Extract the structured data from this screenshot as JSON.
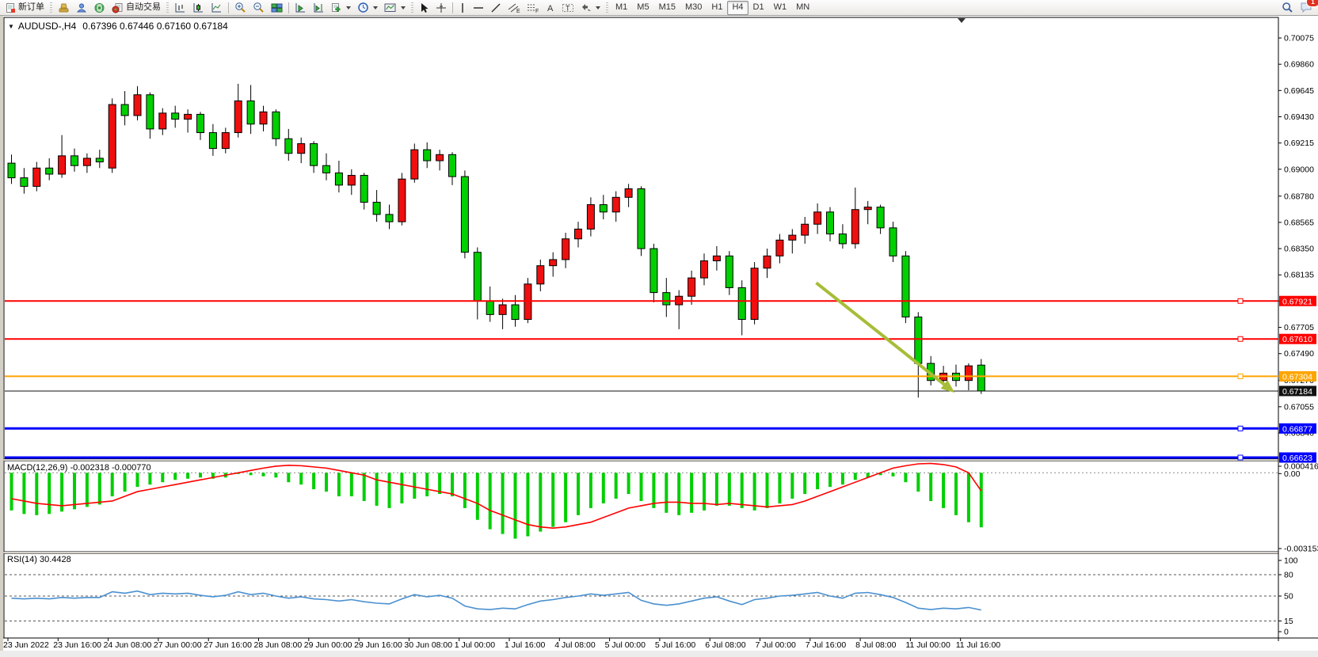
{
  "toolbar": {
    "new_order_label": "新订单",
    "autotrade_label": "自动交易",
    "timeframes": [
      "M1",
      "M5",
      "M15",
      "M30",
      "H1",
      "H4",
      "D1",
      "W1",
      "MN"
    ],
    "active_timeframe": "H4",
    "notification_count": "1",
    "icons": {
      "new-order-icon": "document-plus",
      "stamp-icon": "stamp",
      "accounts-icon": "user",
      "signal-icon": "broadcast",
      "autotrade-icon": "autotrade-toggle",
      "bar-chart-icon": "ohlc-bars",
      "candle-chart-icon": "candlesticks",
      "line-chart-icon": "line-chart",
      "zoom-in-icon": "magnifier-plus",
      "zoom-out-icon": "magnifier-minus",
      "tile-windows-icon": "tiled-windows",
      "auto-scroll-icon": "scroll-to-end",
      "chart-shift-icon": "chart-shift",
      "new-chart-icon": "add-chart",
      "period-icon": "clock",
      "template-icon": "chart-template",
      "cursor-icon": "pointer",
      "crosshair-icon": "crosshair",
      "vertical-line-icon": "vertical-line",
      "horizontal-line-icon": "horizontal-line",
      "trendline-icon": "trendline",
      "channel-icon": "equidistant-channel-E",
      "fibonacci-icon": "fibonacci-F",
      "text-icon": "letter-A",
      "label-icon": "text-label-T",
      "arrows-icon": "arrow-objects",
      "search-icon": "magnifier",
      "chat-icon": "speech-bubble"
    }
  },
  "chart": {
    "symbol_period": "AUDUSD-,H4",
    "ohlc_line": "0.67396 0.67446 0.67160 0.67184"
  },
  "chart_data": [
    {
      "type": "candlestick",
      "symbol": "AUDUSD-",
      "timeframe": "H4",
      "open": "0.67396",
      "high": "0.67446",
      "low": "0.67160",
      "close": "0.67184",
      "bull_color": "#ef0f0f",
      "bear_color": "#00cf00",
      "y_ticks": [
        "0.70075",
        "0.69860",
        "0.69645",
        "0.69430",
        "0.69215",
        "0.69000",
        "0.68780",
        "0.68565",
        "0.68350",
        "0.68135",
        "0.67920",
        "0.67705",
        "0.67490",
        "0.67270",
        "0.67055",
        "0.66840"
      ],
      "x_labels": [
        "23 Jun 2022",
        "23 Jun 16:00",
        "24 Jun 08:00",
        "27 Jun 00:00",
        "27 Jun 16:00",
        "28 Jun 08:00",
        "29 Jun 00:00",
        "29 Jun 16:00",
        "30 Jun 08:00",
        "1 Jul 00:00",
        "1 Jul 16:00",
        "4 Jul 08:00",
        "5 Jul 00:00",
        "5 Jul 16:00",
        "6 Jul 08:00",
        "7 Jul 00:00",
        "7 Jul 16:00",
        "8 Jul 08:00",
        "11 Jul 00:00",
        "11 Jul 16:00"
      ],
      "candles_per_label": 4,
      "hlines": [
        {
          "price": 0.67921,
          "label": "0.67921",
          "color": "#ff0000",
          "width": 2,
          "handle": true
        },
        {
          "price": 0.6761,
          "label": "0.67610",
          "color": "#ff0000",
          "width": 2,
          "handle": true
        },
        {
          "price": 0.67304,
          "label": "0.67304",
          "color": "#ffa500",
          "width": 2,
          "handle": true
        },
        {
          "price": 0.67184,
          "label": "0.67184",
          "color": "#111111",
          "width": 1,
          "handle": false,
          "role": "current-price"
        },
        {
          "price": 0.66877,
          "label": "0.66877",
          "color": "#0000ff",
          "width": 3,
          "handle": true
        },
        {
          "price": 0.66623,
          "label": "0.66623",
          "color": "#0000ff",
          "width": 3,
          "handle": true
        }
      ],
      "arrow": {
        "from_index": 63.9,
        "from_price": 0.6807,
        "to_index": 74.4,
        "to_price": 0.6721,
        "color": "#a6bd38"
      },
      "candles": [
        [
          0.6905,
          0.6912,
          0.6888,
          0.6893
        ],
        [
          0.6893,
          0.6901,
          0.688,
          0.6886
        ],
        [
          0.6886,
          0.6906,
          0.6882,
          0.6901
        ],
        [
          0.6901,
          0.6909,
          0.6891,
          0.6896
        ],
        [
          0.6896,
          0.6928,
          0.6893,
          0.6911
        ],
        [
          0.6911,
          0.6917,
          0.6898,
          0.6903
        ],
        [
          0.6903,
          0.6913,
          0.6897,
          0.6909
        ],
        [
          0.6909,
          0.6916,
          0.6901,
          0.6906
        ],
        [
          0.6901,
          0.6958,
          0.6897,
          0.6953
        ],
        [
          0.6953,
          0.6964,
          0.6936,
          0.6944
        ],
        [
          0.6944,
          0.6968,
          0.694,
          0.6961
        ],
        [
          0.6961,
          0.6963,
          0.6925,
          0.6933
        ],
        [
          0.6933,
          0.695,
          0.6928,
          0.6946
        ],
        [
          0.6946,
          0.6952,
          0.6934,
          0.6941
        ],
        [
          0.6941,
          0.6949,
          0.693,
          0.6945
        ],
        [
          0.6945,
          0.6947,
          0.6924,
          0.693
        ],
        [
          0.693,
          0.6937,
          0.6911,
          0.6917
        ],
        [
          0.6917,
          0.6934,
          0.6913,
          0.693
        ],
        [
          0.693,
          0.697,
          0.6926,
          0.6956
        ],
        [
          0.6956,
          0.6969,
          0.6929,
          0.6937
        ],
        [
          0.6937,
          0.6952,
          0.6931,
          0.6947
        ],
        [
          0.6947,
          0.6949,
          0.6919,
          0.6925
        ],
        [
          0.6925,
          0.6933,
          0.6907,
          0.6913
        ],
        [
          0.6913,
          0.6926,
          0.6905,
          0.6921
        ],
        [
          0.6921,
          0.6923,
          0.6897,
          0.6903
        ],
        [
          0.6903,
          0.6913,
          0.6891,
          0.6897
        ],
        [
          0.6897,
          0.6907,
          0.6881,
          0.6887
        ],
        [
          0.6887,
          0.69,
          0.6879,
          0.6895
        ],
        [
          0.6895,
          0.6897,
          0.6867,
          0.6873
        ],
        [
          0.6873,
          0.6883,
          0.6857,
          0.6863
        ],
        [
          0.6863,
          0.6871,
          0.6851,
          0.6857
        ],
        [
          0.6857,
          0.6897,
          0.6854,
          0.6892
        ],
        [
          0.6892,
          0.6921,
          0.6889,
          0.6916
        ],
        [
          0.6916,
          0.6922,
          0.6901,
          0.6907
        ],
        [
          0.6907,
          0.6916,
          0.6899,
          0.6912
        ],
        [
          0.6912,
          0.6914,
          0.6887,
          0.6894
        ],
        [
          0.6894,
          0.6899,
          0.6827,
          0.6832
        ],
        [
          0.6832,
          0.6836,
          0.6777,
          0.6792
        ],
        [
          0.6792,
          0.6804,
          0.6775,
          0.6781
        ],
        [
          0.6781,
          0.6794,
          0.6769,
          0.6789
        ],
        [
          0.6789,
          0.6797,
          0.6771,
          0.6777
        ],
        [
          0.6777,
          0.6811,
          0.6774,
          0.6806
        ],
        [
          0.6806,
          0.6826,
          0.68,
          0.6821
        ],
        [
          0.6821,
          0.6832,
          0.6812,
          0.6826
        ],
        [
          0.6826,
          0.6848,
          0.6819,
          0.6843
        ],
        [
          0.6843,
          0.6857,
          0.6836,
          0.6851
        ],
        [
          0.6851,
          0.6877,
          0.6845,
          0.6871
        ],
        [
          0.6871,
          0.6879,
          0.6859,
          0.6865
        ],
        [
          0.6865,
          0.6882,
          0.6857,
          0.6877
        ],
        [
          0.6877,
          0.6888,
          0.6869,
          0.6884
        ],
        [
          0.6884,
          0.6886,
          0.6829,
          0.6835
        ],
        [
          0.6835,
          0.6839,
          0.6791,
          0.6799
        ],
        [
          0.6799,
          0.6811,
          0.6779,
          0.6789
        ],
        [
          0.6789,
          0.6801,
          0.6769,
          0.6796
        ],
        [
          0.6796,
          0.6817,
          0.6789,
          0.6811
        ],
        [
          0.6811,
          0.6831,
          0.6805,
          0.6825
        ],
        [
          0.6825,
          0.6837,
          0.6817,
          0.6829
        ],
        [
          0.6829,
          0.6833,
          0.6797,
          0.6803
        ],
        [
          0.6803,
          0.6809,
          0.6764,
          0.6777
        ],
        [
          0.6777,
          0.6824,
          0.6773,
          0.6819
        ],
        [
          0.6819,
          0.6835,
          0.6811,
          0.6829
        ],
        [
          0.6829,
          0.6847,
          0.6823,
          0.6842
        ],
        [
          0.6842,
          0.6851,
          0.6831,
          0.6846
        ],
        [
          0.6846,
          0.6861,
          0.6839,
          0.6855
        ],
        [
          0.6855,
          0.6872,
          0.6847,
          0.6865
        ],
        [
          0.6865,
          0.6869,
          0.6841,
          0.6847
        ],
        [
          0.6847,
          0.6855,
          0.6835,
          0.6839
        ],
        [
          0.6839,
          0.6885,
          0.6835,
          0.6867
        ],
        [
          0.6867,
          0.6874,
          0.6855,
          0.6869
        ],
        [
          0.6869,
          0.6871,
          0.6847,
          0.6852
        ],
        [
          0.6852,
          0.6857,
          0.6824,
          0.6829
        ],
        [
          0.6829,
          0.6833,
          0.6774,
          0.6779
        ],
        [
          0.6779,
          0.6783,
          0.6713,
          0.6741
        ],
        [
          0.6741,
          0.6747,
          0.6723,
          0.6727
        ],
        [
          0.6727,
          0.6739,
          0.6721,
          0.6733
        ],
        [
          0.6733,
          0.674,
          0.6722,
          0.6727
        ],
        [
          0.6727,
          0.6741,
          0.6719,
          0.6739
        ],
        [
          0.67396,
          0.67446,
          0.6716,
          0.67184
        ]
      ]
    },
    {
      "type": "bar+line",
      "name": "MACD",
      "params": "(12,26,9)",
      "label_display": "MACD(12,26,9) -0.002318 -0.000770",
      "main_value": "-0.002318",
      "signal_value": "-0.000770",
      "histogram_color": "#00cf00",
      "signal_color": "#ff0000",
      "y_axis": {
        "max_label": "0.000416",
        "zero_label": "0.00",
        "min_label": "-0.003153",
        "min_value": -0.003153
      },
      "histogram": [
        -0.0016,
        -0.00175,
        -0.0018,
        -0.00175,
        -0.00165,
        -0.00155,
        -0.00145,
        -0.00135,
        -0.001,
        -0.0008,
        -0.0006,
        -0.0005,
        -0.0004,
        -0.0003,
        -0.00025,
        -0.0002,
        -0.00025,
        -0.0002,
        -5e-05,
        -0.0001,
        -0.00015,
        -0.0002,
        -0.0004,
        -0.0005,
        -0.0007,
        -0.0008,
        -0.001,
        -0.001,
        -0.0012,
        -0.0014,
        -0.0015,
        -0.0013,
        -0.0011,
        -0.001,
        -0.0009,
        -0.001,
        -0.0015,
        -0.002,
        -0.0024,
        -0.0026,
        -0.0028,
        -0.0027,
        -0.0025,
        -0.0023,
        -0.0021,
        -0.0018,
        -0.0015,
        -0.0013,
        -0.0011,
        -0.0009,
        -0.0012,
        -0.0015,
        -0.0017,
        -0.0018,
        -0.0017,
        -0.0016,
        -0.0014,
        -0.0014,
        -0.0015,
        -0.0016,
        -0.0015,
        -0.0013,
        -0.0011,
        -0.0009,
        -0.0007,
        -0.0006,
        -0.0005,
        -0.0003,
        -0.0002,
        -0.0001,
        -0.00015,
        -0.0004,
        -0.0008,
        -0.0012,
        -0.0015,
        -0.0018,
        -0.0021,
        -0.002318
      ],
      "signal": [
        -0.0011,
        -0.0012,
        -0.0013,
        -0.00135,
        -0.0014,
        -0.00135,
        -0.0013,
        -0.00125,
        -0.0012,
        -0.001,
        -0.0008,
        -0.0007,
        -0.0006,
        -0.0005,
        -0.0004,
        -0.0003,
        -0.0002,
        -0.0001,
        0.0,
        0.0001,
        0.0002,
        0.00028,
        0.00032,
        0.0003,
        0.00025,
        0.0002,
        0.0001,
        0.0,
        -0.0001,
        -0.0003,
        -0.0004,
        -0.0005,
        -0.0006,
        -0.0007,
        -0.0008,
        -0.0009,
        -0.0011,
        -0.0013,
        -0.0016,
        -0.0018,
        -0.002,
        -0.0022,
        -0.0023,
        -0.00235,
        -0.0023,
        -0.0022,
        -0.0021,
        -0.0019,
        -0.0017,
        -0.0015,
        -0.0014,
        -0.0013,
        -0.00125,
        -0.00125,
        -0.0013,
        -0.0013,
        -0.00135,
        -0.0013,
        -0.00135,
        -0.0014,
        -0.00145,
        -0.0014,
        -0.00135,
        -0.0012,
        -0.001,
        -0.0008,
        -0.0006,
        -0.0004,
        -0.0002,
        0.0,
        0.0002,
        0.0003,
        0.00038,
        0.0004,
        0.00035,
        0.00025,
        0.0,
        -0.00077
      ]
    },
    {
      "type": "line",
      "name": "RSI",
      "params": "(14)",
      "label_display": "RSI(14) 30.4428",
      "current_value": "30.4428",
      "line_color": "#4a90d0",
      "range": [
        0,
        100
      ],
      "levels": [
        80,
        50,
        15
      ],
      "axis_labels": [
        "100",
        "80",
        "50",
        "15",
        "0"
      ],
      "values": [
        47,
        46,
        47,
        46,
        48,
        47,
        48,
        48,
        56,
        54,
        57,
        52,
        54,
        53,
        54,
        51,
        49,
        51,
        56,
        52,
        54,
        50,
        47,
        49,
        46,
        45,
        43,
        45,
        42,
        40,
        39,
        46,
        52,
        49,
        51,
        47,
        36,
        32,
        31,
        33,
        32,
        38,
        43,
        45,
        48,
        50,
        53,
        51,
        53,
        55,
        44,
        39,
        37,
        39,
        43,
        47,
        49,
        43,
        38,
        45,
        47,
        50,
        51,
        53,
        55,
        50,
        47,
        54,
        55,
        52,
        48,
        41,
        33,
        31,
        33,
        32,
        34,
        30.4428
      ]
    }
  ]
}
